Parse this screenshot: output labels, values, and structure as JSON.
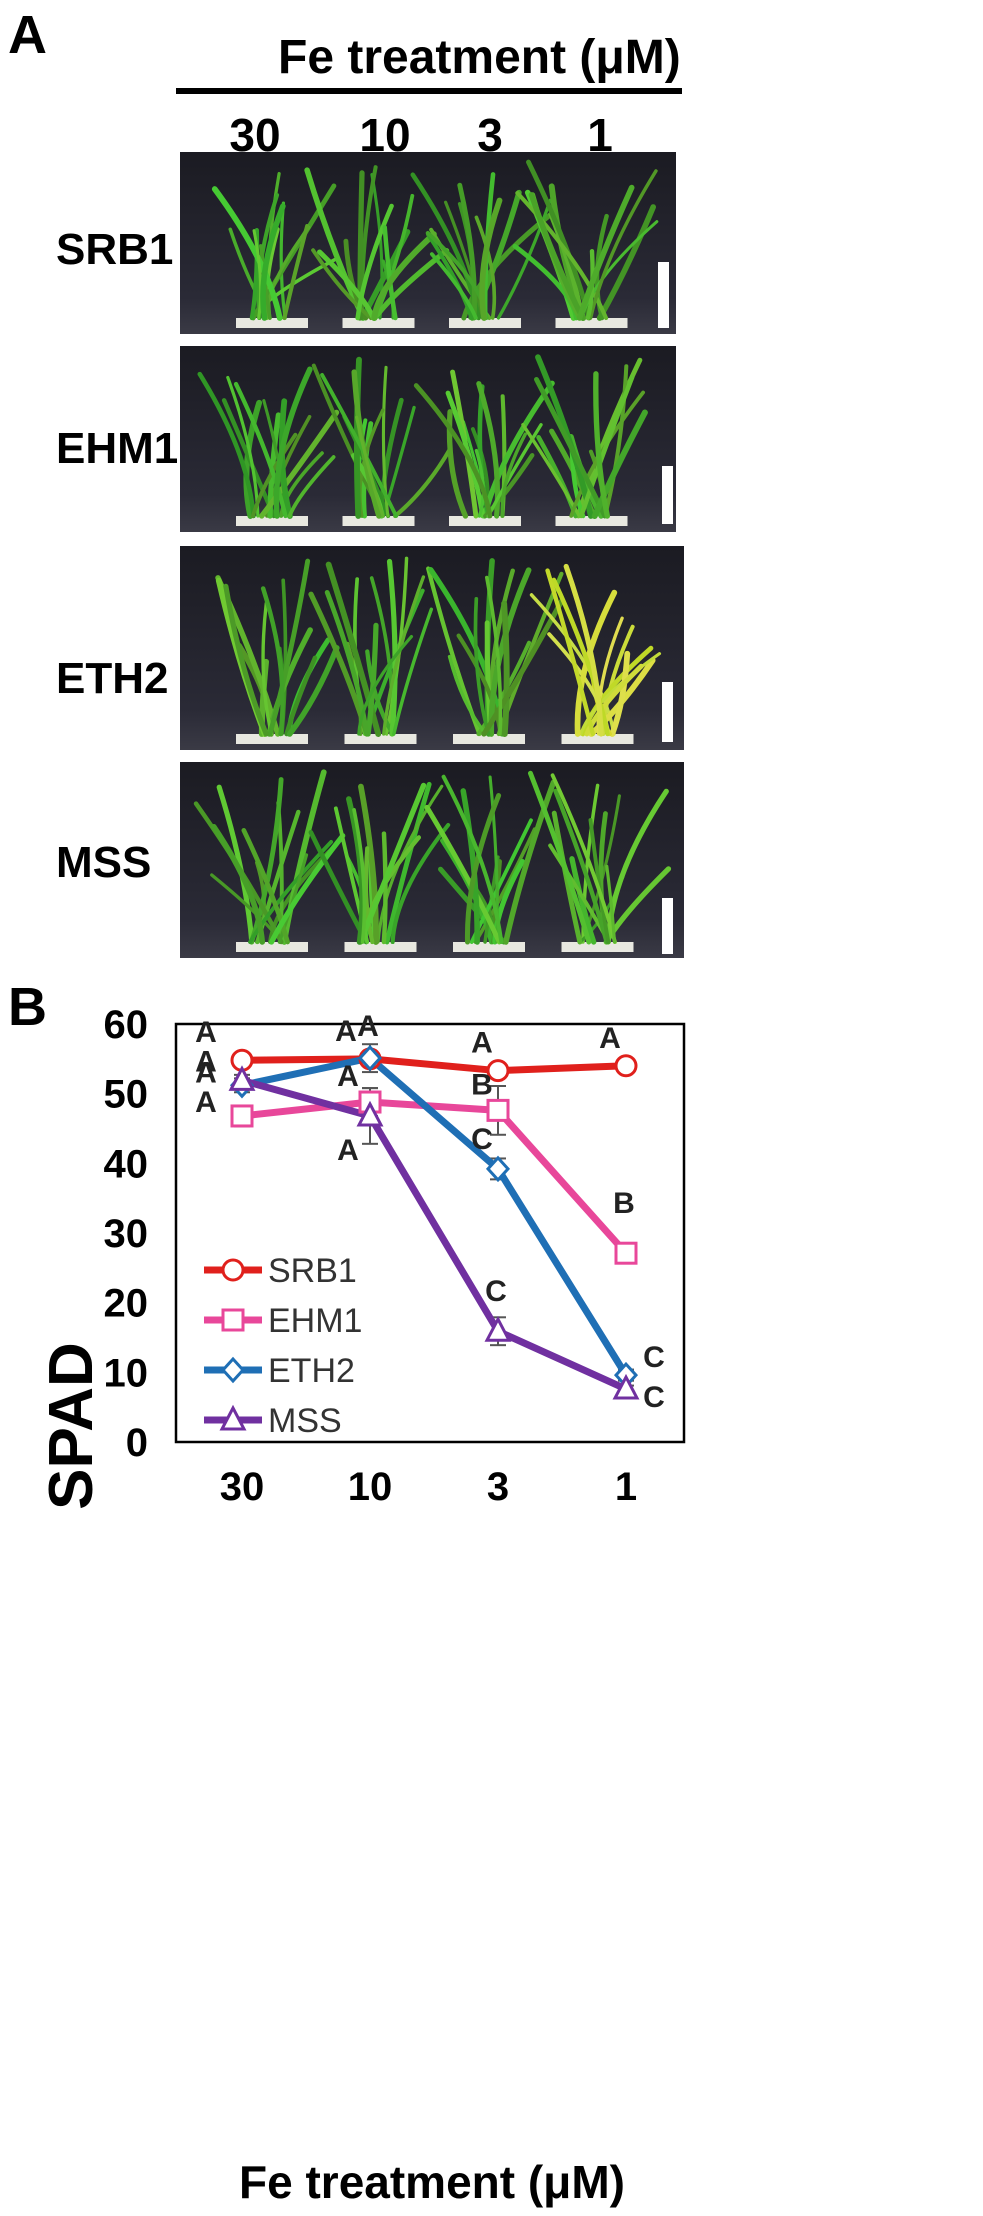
{
  "panel_a": {
    "letter": "A",
    "header": "Fe treatment (μM)",
    "concentrations": [
      "30",
      "10",
      "3",
      "1"
    ],
    "rows": [
      {
        "label": "SRB1",
        "appearance": "green"
      },
      {
        "label": "EHM1",
        "appearance": "green"
      },
      {
        "label": "ETH2",
        "appearance": "chlorotic at 1 μM"
      },
      {
        "label": "MSS",
        "appearance": "green"
      }
    ]
  },
  "panel_b": {
    "letter": "B"
  },
  "chart_data": {
    "type": "line",
    "xlabel": "Fe treatment (μM)",
    "ylabel": "SPAD",
    "categories": [
      "30",
      "10",
      "3",
      "1"
    ],
    "ylim": [
      0,
      60
    ],
    "yticks": [
      0,
      10,
      20,
      30,
      40,
      50,
      60
    ],
    "grid": false,
    "legend_position": "bottom-left",
    "series": [
      {
        "name": "SRB1",
        "color": "#e0201c",
        "marker": "circle",
        "values": [
          54.8,
          55.0,
          53.3,
          54.0
        ],
        "errors": [
          0.5,
          0.5,
          1.0,
          0.6
        ],
        "labels": [
          "A",
          "A",
          "A",
          "A"
        ]
      },
      {
        "name": "EHM1",
        "color": "#e8479a",
        "marker": "square",
        "values": [
          46.8,
          48.8,
          47.6,
          27.1
        ],
        "errors": [
          1.5,
          2.0,
          3.5,
          1.0
        ],
        "labels": [
          "A",
          "A",
          "B",
          "B"
        ]
      },
      {
        "name": "ETH2",
        "color": "#1f6fb5",
        "marker": "diamond",
        "values": [
          51.2,
          55.1,
          39.2,
          9.6
        ],
        "errors": [
          1.0,
          2.0,
          1.5,
          0.8
        ],
        "labels": [
          "A",
          "A",
          "C",
          "C"
        ]
      },
      {
        "name": "MSS",
        "color": "#7030a0",
        "marker": "triangle",
        "values": [
          51.9,
          46.8,
          15.9,
          7.6
        ],
        "errors": [
          0.8,
          4.0,
          2.0,
          0.5
        ],
        "labels": [
          "A",
          "A",
          "C",
          "C"
        ]
      }
    ]
  }
}
